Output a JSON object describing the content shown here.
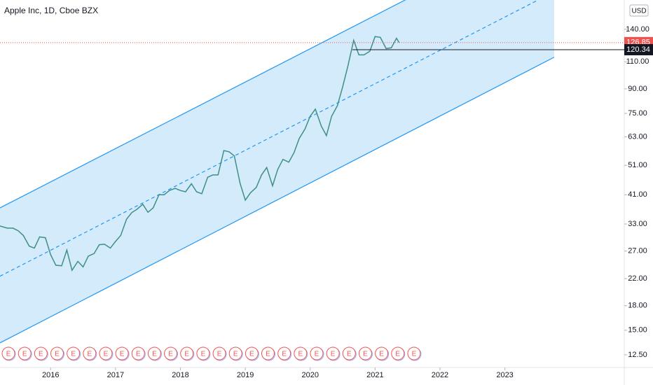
{
  "chart_data": {
    "type": "line",
    "title": "Apple Inc, 1D, Cboe BZX",
    "currency": "USD",
    "log_scale": true,
    "color": "#3f8f86",
    "x": [
      2015.22,
      2015.33,
      2015.42,
      2015.5,
      2015.58,
      2015.67,
      2015.75,
      2015.83,
      2015.92,
      2016.0,
      2016.08,
      2016.17,
      2016.25,
      2016.33,
      2016.42,
      2016.5,
      2016.58,
      2016.67,
      2016.75,
      2016.83,
      2016.92,
      2017.0,
      2017.08,
      2017.17,
      2017.25,
      2017.33,
      2017.42,
      2017.5,
      2017.58,
      2017.67,
      2017.75,
      2017.83,
      2017.92,
      2018.0,
      2018.08,
      2018.17,
      2018.25,
      2018.33,
      2018.42,
      2018.5,
      2018.58,
      2018.67,
      2018.75,
      2018.83,
      2018.92,
      2019.0,
      2019.08,
      2019.17,
      2019.25,
      2019.33,
      2019.42,
      2019.5,
      2019.58,
      2019.67,
      2019.75,
      2019.83,
      2019.92,
      2020.0,
      2020.08,
      2020.17,
      2020.25,
      2020.33,
      2020.42,
      2020.5,
      2020.58,
      2020.67,
      2020.75,
      2020.83,
      2020.92,
      2021.0,
      2021.08,
      2021.17,
      2021.25,
      2021.33,
      2021.37
    ],
    "values": [
      32.5,
      32,
      32,
      31.4,
      30.3,
      28,
      27.6,
      30,
      29.8,
      26.3,
      24.3,
      24.2,
      27.2,
      23.4,
      25,
      24,
      26,
      26.5,
      28.3,
      28.4,
      27.6,
      29,
      30.3,
      34.2,
      35.9,
      36.8,
      38.2,
      36,
      37.2,
      41,
      41,
      42.3,
      43,
      42.3,
      41.9,
      44.5,
      41.9,
      41.3,
      46.7,
      47.5,
      47.5,
      56.9,
      56.4,
      54.7,
      44.6,
      39.4,
      41.6,
      43.3,
      47.5,
      50.2,
      43.8,
      49.5,
      53.3,
      52.2,
      56,
      62.2,
      66.8,
      73.4,
      77.4,
      68.3,
      63.6,
      73.4,
      79.5,
      91.2,
      106.3,
      129,
      115.8,
      115.8,
      119,
      132.7,
      131.9,
      121.3,
      122,
      131,
      126.85
    ],
    "xlim": [
      2015.22,
      2024.84
    ],
    "ylim": [
      11.2,
      174
    ],
    "xticks": [
      2016,
      2017,
      2018,
      2019,
      2020,
      2021,
      2022,
      2023
    ],
    "yticks": [
      {
        "value": 12.5,
        "label": "12.50"
      },
      {
        "value": 15,
        "label": "15.00"
      },
      {
        "value": 18,
        "label": "18.00"
      },
      {
        "value": 22,
        "label": "22.00"
      },
      {
        "value": 27,
        "label": "27.00"
      },
      {
        "value": 33,
        "label": "33.00"
      },
      {
        "value": 41,
        "label": "41.00"
      },
      {
        "value": 51,
        "label": "51.00"
      },
      {
        "value": 63,
        "label": "63.00"
      },
      {
        "value": 75,
        "label": "75.00"
      },
      {
        "value": 90,
        "label": "90.00"
      },
      {
        "value": 110,
        "label": "110.00"
      },
      {
        "value": 140,
        "label": "140.00"
      }
    ],
    "last_price": 126.85,
    "horizontal_line": {
      "value": 120.34,
      "x_start": 2020.65
    },
    "channel": {
      "x": [
        2015.22,
        2023.76
      ],
      "upper": [
        37.2,
        306.9
      ],
      "middle": [
        22.4,
        185
      ],
      "lower": [
        13.66,
        113.8
      ],
      "color": "#2196f3",
      "fill": "#cde8fb"
    },
    "earnings_label": "E",
    "earnings": [
      2015.35,
      2015.6,
      2015.85,
      2016.1,
      2016.35,
      2016.6,
      2016.85,
      2017.1,
      2017.35,
      2017.6,
      2017.85,
      2018.1,
      2018.35,
      2018.6,
      2018.85,
      2019.1,
      2019.35,
      2019.6,
      2019.85,
      2020.1,
      2020.35,
      2020.6,
      2020.85,
      2021.1,
      2021.35,
      2021.6
    ]
  }
}
